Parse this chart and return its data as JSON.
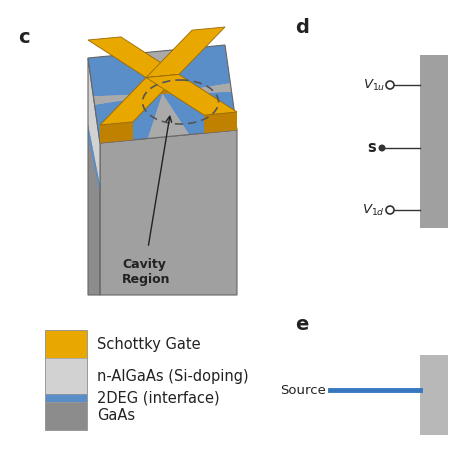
{
  "bg_color": "#ffffff",
  "text_color": "#222222",
  "label_fontsize": 14,
  "legend_fontsize": 10.5,
  "gate_color": "#E8A800",
  "gaas_color": "#8c8c8c",
  "algaas_color": "#d2d2d2",
  "deg2_color": "#5a8ec8",
  "box_top_color": "#c0c0c0",
  "box_left_color": "#d8d8d8",
  "box_right_color": "#a0a0a0",
  "box_front_color": "#b8b8b8",
  "legend_items": [
    {
      "label": "Schottky Gate",
      "color": "#E8A800"
    },
    {
      "label": "n-AlGaAs (Si-doping)",
      "color": "#d2d2d2"
    },
    {
      "label": "2DEG (interface)",
      "color": "#5a8ec8"
    },
    {
      "label": "GaAs",
      "color": "#8c8c8c"
    }
  ]
}
